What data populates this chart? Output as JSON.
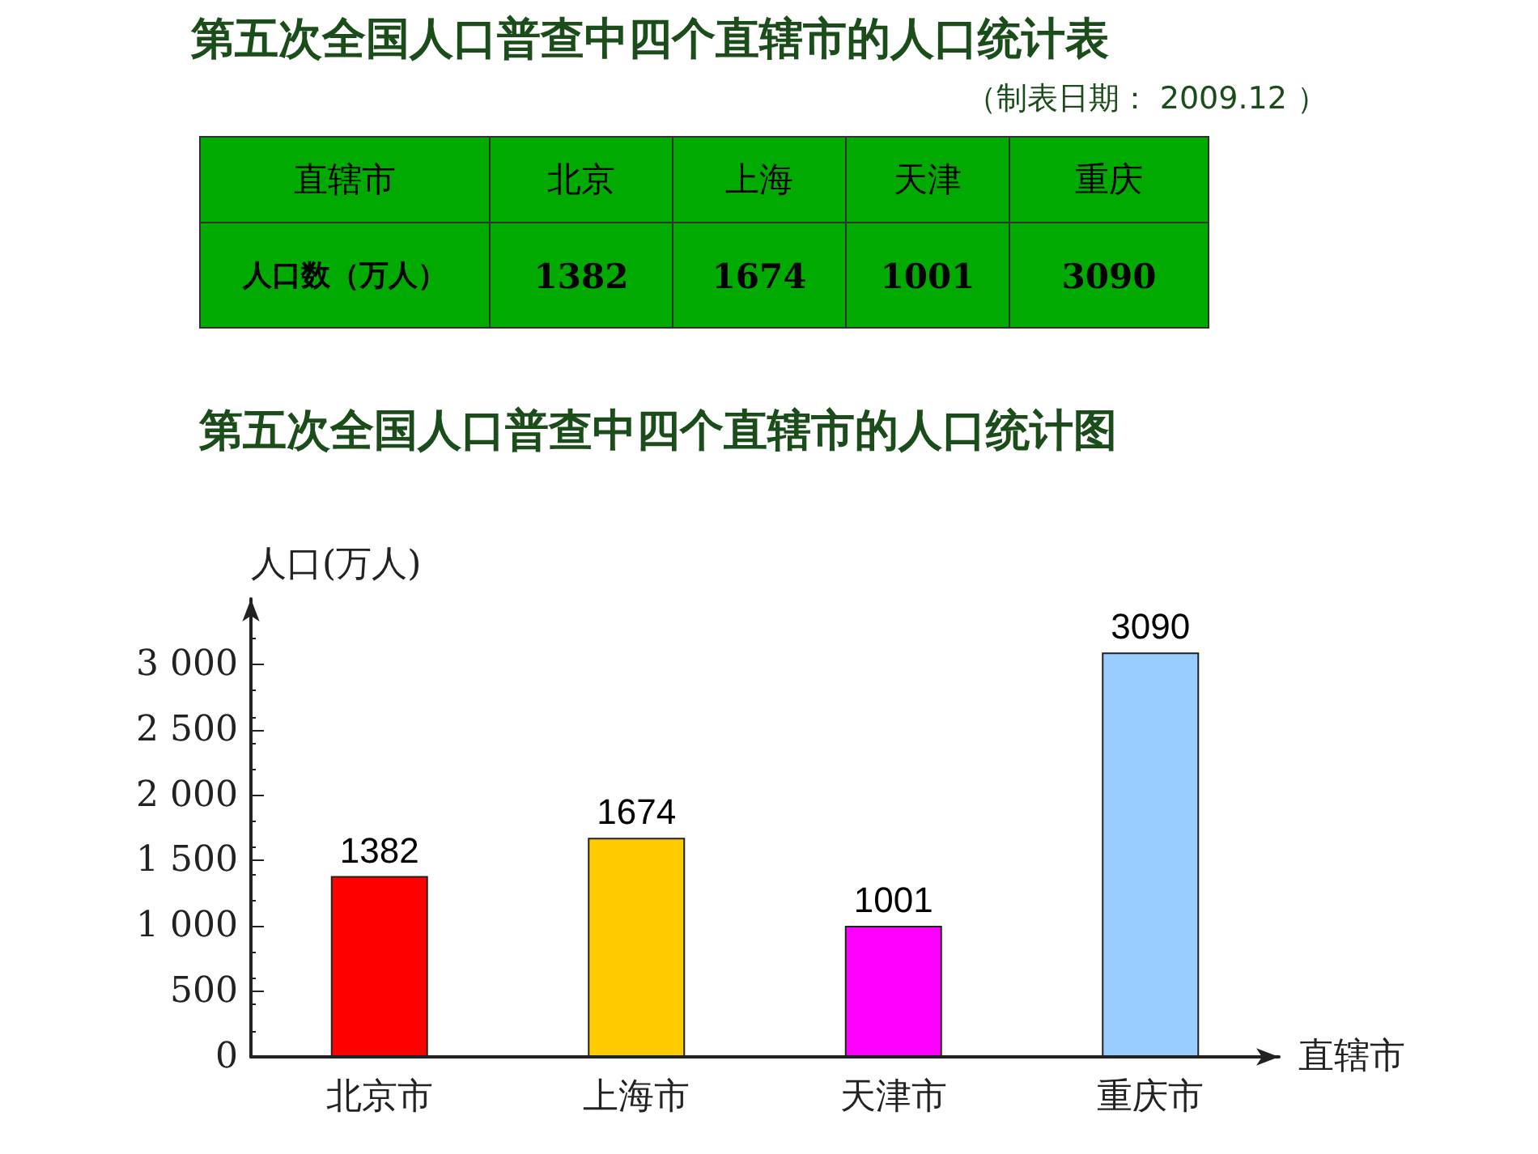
{
  "chart_data": {
    "type": "bar",
    "title": "第五次全国人口普查中四个直辖市的人口统计图",
    "annotations": [
      "第五次全国人口普查中四个直辖市的人口统计表",
      "（制表日期： 2009.12 ）",
      "直辖市",
      "北京",
      "上海",
      "天津",
      "重庆",
      "人口数（万人）"
    ],
    "xlabel": "直辖市",
    "ylabel": "人口(万人)",
    "categories": [
      "北京市",
      "上海市",
      "天津市",
      "重庆市"
    ],
    "values": [
      1382,
      1674,
      1001,
      3090
    ],
    "colors": [
      "#ff0000",
      "#ffcc00",
      "#ff00ff",
      "#99ccff"
    ],
    "ylim": [
      0,
      3500
    ],
    "yticks": [
      {
        "value": 0,
        "label": "0"
      },
      {
        "value": 500,
        "label": "500"
      },
      {
        "value": 1000,
        "label": "1 000"
      },
      {
        "value": 1500,
        "label": "1 500"
      },
      {
        "value": 2000,
        "label": "2 000"
      },
      {
        "value": 2500,
        "label": "2 500"
      },
      {
        "value": 3000,
        "label": "3 000"
      }
    ],
    "value_labels": [
      "1382",
      "1674",
      "1001",
      "3090"
    ],
    "grid": false
  }
}
